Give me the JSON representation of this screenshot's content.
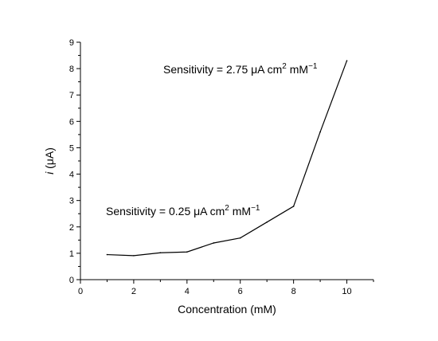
{
  "chart_data": {
    "type": "line",
    "xlabel": "Concentration (mM)",
    "ylabel_italic": "i",
    "ylabel_rest": " (μA)",
    "xlim": [
      0,
      11
    ],
    "ylim": [
      0,
      9
    ],
    "x_ticks": [
      0,
      2,
      4,
      6,
      8,
      10
    ],
    "y_ticks": [
      0,
      1,
      2,
      3,
      4,
      5,
      6,
      7,
      8,
      9
    ],
    "grid": false,
    "legend": "none",
    "series": [
      {
        "x": [
          1,
          2,
          3,
          4,
          5,
          6,
          7,
          8,
          9,
          10
        ],
        "y": [
          0.95,
          0.91,
          1.02,
          1.05,
          1.39,
          1.58,
          2.18,
          2.78,
          5.6,
          8.3
        ]
      }
    ],
    "line_color": "#000000",
    "annotations": [
      {
        "main": "Sensitivity = 2.75 μA cm",
        "sup1": "2",
        "mid": " mM",
        "sup2": "−1"
      },
      {
        "main": "Sensitivity = 0.25 μA cm",
        "sup1": "2",
        "mid": " mM",
        "sup2": "−1"
      }
    ]
  }
}
